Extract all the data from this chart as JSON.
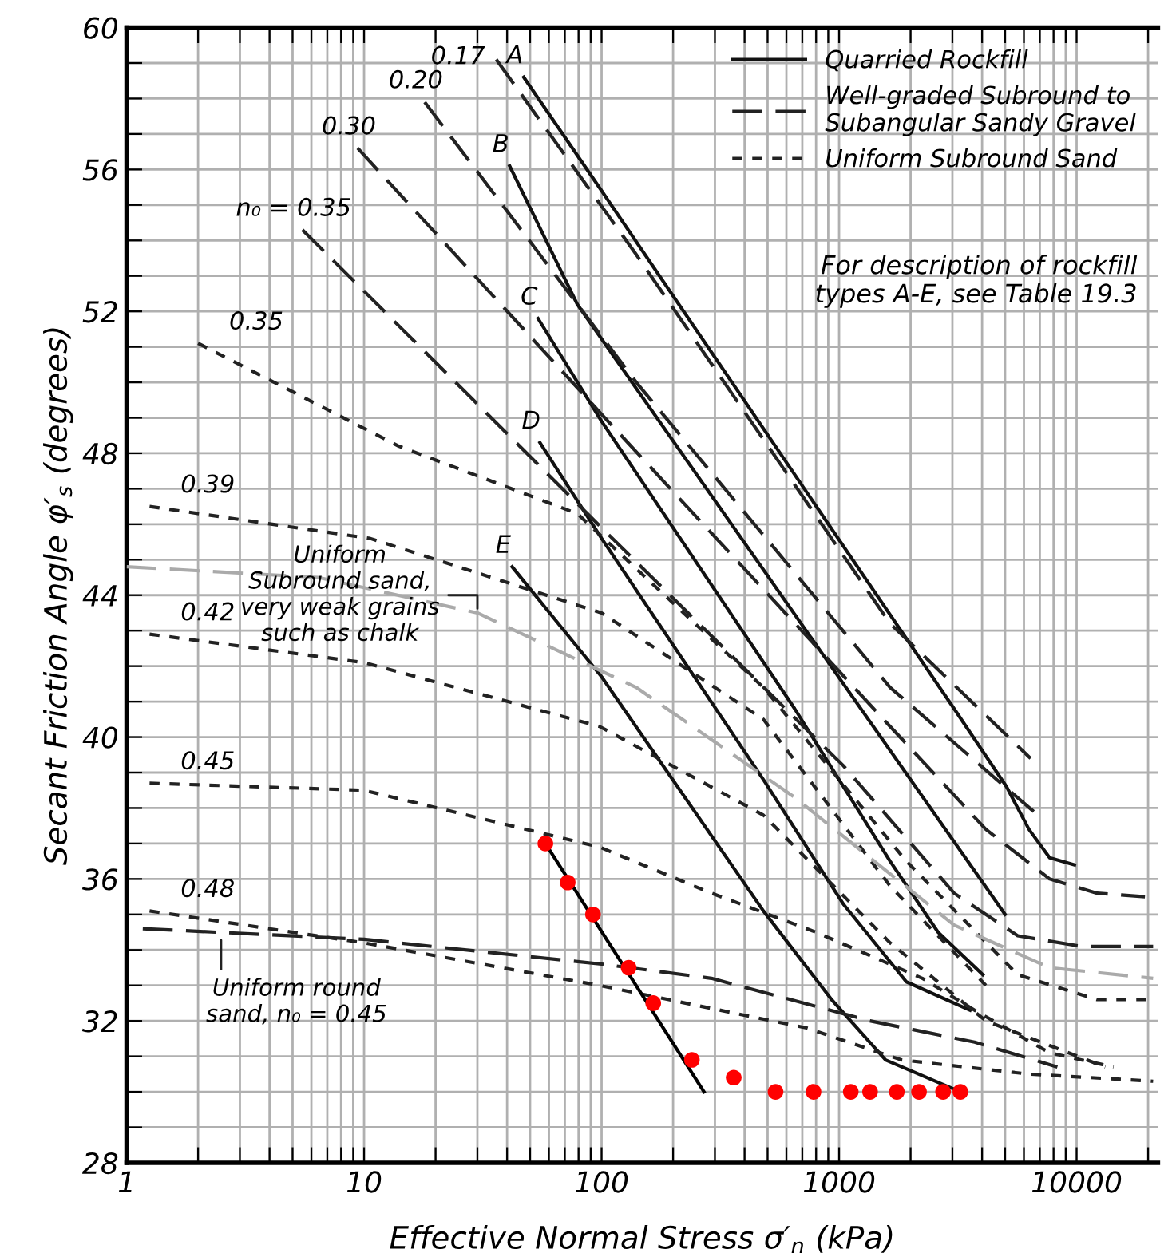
{
  "chart_data": {
    "type": "line",
    "xlabel": "Effective Normal Stress σ′$_{n}$ (kPa)",
    "ylabel": "Secant Friction Angle φ′$_{s}$ (degrees)",
    "log": "x",
    "grid": true,
    "legend": "top right",
    "xlim": [
      1,
      22000
    ],
    "ylim": [
      28,
      60
    ],
    "xticks": [
      1,
      {
        "value": 2,
        "label": null
      },
      {
        "value": 3,
        "label": null
      },
      {
        "value": 4,
        "label": null
      },
      {
        "value": 5,
        "label": null
      },
      {
        "value": 6,
        "label": null
      },
      {
        "value": 7,
        "label": null
      },
      {
        "value": 8,
        "label": null
      },
      {
        "value": 9,
        "label": null
      },
      10,
      {
        "value": 20,
        "label": null
      },
      {
        "value": 30,
        "label": null
      },
      {
        "value": 40,
        "label": null
      },
      {
        "value": 50,
        "label": null
      },
      {
        "value": 60,
        "label": null
      },
      {
        "value": 70,
        "label": null
      },
      {
        "value": 80,
        "label": null
      },
      {
        "value": 90,
        "label": null
      },
      100,
      {
        "value": 200,
        "label": null
      },
      {
        "value": 300,
        "label": null
      },
      {
        "value": 400,
        "label": null
      },
      {
        "value": 500,
        "label": null
      },
      {
        "value": 600,
        "label": null
      },
      {
        "value": 700,
        "label": null
      },
      {
        "value": 800,
        "label": null
      },
      {
        "value": 900,
        "label": null
      },
      1000,
      {
        "value": 2000,
        "label": null
      },
      {
        "value": 3000,
        "label": null
      },
      {
        "value": 4000,
        "label": null
      },
      {
        "value": 5000,
        "label": null
      },
      {
        "value": 6000,
        "label": null
      },
      {
        "value": 7000,
        "label": null
      },
      {
        "value": 8000,
        "label": null
      },
      {
        "value": 9000,
        "label": null
      },
      10000,
      {
        "value": 20000,
        "label": null
      }
    ],
    "yticks": [
      28,
      {
        "value": 29,
        "label": null
      },
      {
        "value": 30,
        "label": null
      },
      {
        "value": 31,
        "label": null
      },
      32,
      {
        "value": 33,
        "label": null
      },
      {
        "value": 34,
        "label": null
      },
      {
        "value": 35,
        "label": null
      },
      36,
      {
        "value": 37,
        "label": null
      },
      {
        "value": 38,
        "label": null
      },
      {
        "value": 39,
        "label": null
      },
      40,
      {
        "value": 41,
        "label": null
      },
      {
        "value": 42,
        "label": null
      },
      {
        "value": 43,
        "label": null
      },
      44,
      {
        "value": 45,
        "label": null
      },
      {
        "value": 46,
        "label": null
      },
      {
        "value": 47,
        "label": null
      },
      48,
      {
        "value": 49,
        "label": null
      },
      {
        "value": 50,
        "label": null
      },
      {
        "value": 51,
        "label": null
      },
      52,
      {
        "value": 53,
        "label": null
      },
      {
        "value": 54,
        "label": null
      },
      {
        "value": 55,
        "label": null
      },
      56,
      {
        "value": 57,
        "label": null
      },
      {
        "value": 58,
        "label": null
      },
      {
        "value": 59,
        "label": null
      },
      60
    ],
    "series": [
      {
        "name": "Quarried Rockfill",
        "color": "#111111",
        "line_style": "solid",
        "x": [
          47,
          100,
          650,
          3050,
          5070,
          6300,
          7700,
          9800
        ],
        "values": [
          58.6,
          55.4,
          47.4,
          40.8,
          38.6,
          37.4,
          36.6,
          36.4
        ]
      },
      {
        "color": "#111111",
        "line_style": "solid",
        "x": [
          41,
          79,
          5000
        ],
        "values": [
          56.1,
          52.2,
          35.0
        ]
      },
      {
        "color": "#111111",
        "line_style": "solid",
        "x": [
          54,
          100,
          650,
          1640,
          2610,
          4030
        ],
        "values": [
          51.8,
          48.9,
          40.8,
          36.5,
          34.5,
          33.3
        ]
      },
      {
        "color": "#111111",
        "line_style": "solid",
        "x": [
          55,
          100,
          480,
          1040,
          1920,
          3560
        ],
        "values": [
          48.3,
          45.6,
          38.8,
          35.3,
          33.1,
          32.3
        ]
      },
      {
        "color": "#111111",
        "line_style": "solid",
        "x": [
          42,
          100,
          480,
          930,
          1570,
          3240
        ],
        "values": [
          44.8,
          41.7,
          35.1,
          32.6,
          30.9,
          30.0
        ]
      },
      {
        "name": "Well-graded Subround to\nSubangular Sandy Gravel",
        "color": "#222222",
        "line_style": "dashed",
        "x": [
          36,
          140,
          1640,
          6400
        ],
        "values": [
          59.1,
          53.6,
          43.2,
          39.4
        ]
      },
      {
        "color": "#222222",
        "line_style": "dashed",
        "x": [
          18,
          140,
          1640,
          6600
        ],
        "values": [
          57.9,
          50.0,
          41.4,
          37.9
        ]
      },
      {
        "color": "#222222",
        "line_style": "dashed",
        "x": [
          9.4,
          100,
          1640,
          4150,
          7700,
          12200,
          19400
        ],
        "values": [
          56.6,
          49.1,
          40.3,
          37.4,
          36.0,
          35.6,
          35.5
        ]
      },
      {
        "color": "#222222",
        "line_style": "dashed",
        "x": [
          5.5,
          100,
          1040,
          3050,
          5650,
          10500,
          21000
        ],
        "values": [
          54.3,
          45.9,
          39.2,
          35.6,
          34.4,
          34.1,
          34.1
        ]
      },
      {
        "name": "Uniform Subround Sand",
        "color": "#222222",
        "line_style": "dotted",
        "x": [
          2,
          14,
          79,
          480,
          1920,
          5650,
          12200,
          21000
        ],
        "values": [
          51.1,
          48.2,
          46.3,
          41.4,
          36.5,
          33.3,
          32.6,
          32.6
        ]
      },
      {
        "color": "#222222",
        "line_style": "dotted",
        "x": [
          1.25,
          10.6,
          100,
          480,
          1640,
          4150
        ],
        "values": [
          46.5,
          45.6,
          43.5,
          40.5,
          35.8,
          33.0
        ]
      },
      {
        "color": "#222222",
        "line_style": "dotted",
        "x": [
          1.25,
          10,
          98,
          480,
          1640,
          4150,
          13200
        ],
        "values": [
          42.9,
          42.1,
          40.3,
          37.8,
          34.2,
          32.0,
          30.7
        ]
      },
      {
        "color": "#222222",
        "line_style": "dotted",
        "x": [
          1.25,
          10,
          98,
          290,
          800,
          2240,
          3720,
          7700,
          14300
        ],
        "values": [
          38.7,
          38.5,
          36.9,
          35.6,
          34.5,
          33.2,
          32.3,
          31.1,
          30.7
        ]
      },
      {
        "color": "#222222",
        "line_style": "dotted",
        "x": [
          1.25,
          10,
          98,
          730,
          1830,
          6300,
          21000
        ],
        "values": [
          35.1,
          34.2,
          33.0,
          31.8,
          30.9,
          30.5,
          30.3
        ]
      },
      {
        "color": "#222222",
        "line_style": "dashed",
        "x": [
          1.17,
          10,
          100,
          290,
          1350,
          3720,
          8300
        ],
        "values": [
          34.6,
          34.3,
          33.6,
          33.2,
          32.0,
          31.4,
          30.7
        ]
      },
      {
        "color": "#aaaaaa",
        "line_style": "dashed",
        "x": [
          1,
          6.4,
          30,
          140,
          650,
          3050,
          7700,
          21000
        ],
        "values": [
          44.8,
          44.5,
          43.5,
          41.4,
          38.3,
          34.7,
          33.5,
          33.2
        ]
      },
      {
        "color": "#000000",
        "line_style": "solid",
        "x": [
          58,
          270
        ],
        "values": [
          37.0,
          30.0
        ]
      },
      {
        "type": "scatter",
        "color": "#ff0000",
        "marker": "circle",
        "x": [
          58,
          72,
          92,
          130,
          165,
          240,
          360,
          540,
          780,
          1120,
          1350,
          1750,
          2170,
          2740,
          3240
        ],
        "values": [
          37.0,
          35.9,
          35.0,
          33.5,
          32.5,
          30.9,
          30.4,
          30.0,
          30.0,
          30.0,
          30.0,
          30.0,
          30.0,
          30.0,
          30.0
        ]
      }
    ],
    "annotations": [
      {
        "text": "0.17",
        "x": 36,
        "y": 59.1
      },
      {
        "text": "A",
        "x": 47,
        "y": 58.6
      },
      {
        "text": "0.20",
        "x": 18,
        "y": 57.9
      },
      {
        "text": "0.30",
        "x": 9.4,
        "y": 56.6
      },
      {
        "text": "B",
        "x": 41,
        "y": 56.1
      },
      {
        "text": "n₀ = 0.35",
        "x": 5.5,
        "y": 54.3
      },
      {
        "text": "C",
        "x": 54,
        "y": 51.8
      },
      {
        "text": "0.35",
        "x": 2,
        "y": 51.1
      },
      {
        "text": "D",
        "x": 55,
        "y": 48.3
      },
      {
        "text": "0.39",
        "x": 1.25,
        "y": 46.5
      },
      {
        "text": "E",
        "x": 42,
        "y": 44.8
      },
      {
        "text": "0.42",
        "x": 1.25,
        "y": 42.9
      },
      {
        "text": "0.45",
        "x": 1.25,
        "y": 38.7
      },
      {
        "text": "0.48",
        "x": 1.25,
        "y": 35.1
      },
      {
        "text": "Uniform\nSubround sand,\nvery weak grains\nsuch as chalk",
        "x": 30,
        "y": 43.5
      },
      {
        "text": "Uniform round\nsand, n₀ = 0.45",
        "x": 2.5,
        "y": 34.4
      },
      "For description of rockfill\ntypes A-E, see Table 19.3"
    ]
  }
}
